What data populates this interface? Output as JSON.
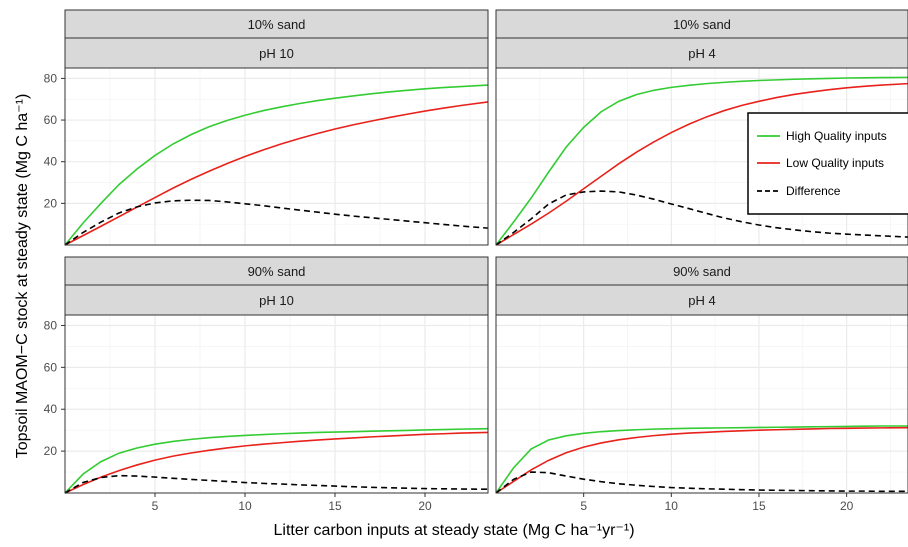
{
  "figure": {
    "xlabel": "Litter carbon inputs at steady state (Mg C ha⁻¹yr⁻¹)",
    "ylabel": "Topsoil MAOM−C stock at steady state (Mg C ha⁻¹)"
  },
  "colors": {
    "high": "#33cc33",
    "low": "#e8221b",
    "diff": "#000000",
    "strip_fill": "#d9d9d9",
    "grid_major": "#ebebeb"
  },
  "legend": {
    "placement": "inside panel top-right (10% sand, pH 4)",
    "entries": [
      "High Quality inputs",
      "Low Quality inputs",
      "Difference"
    ]
  },
  "chart_data": {
    "type": "line",
    "layout": "facet grid 2x2",
    "xlim": [
      0,
      23.5
    ],
    "ylim": [
      0,
      85
    ],
    "xticks": [
      5,
      10,
      15,
      20
    ],
    "yticks": [
      20,
      40,
      60,
      80
    ],
    "grid": true,
    "panels": [
      {
        "strip_top": "10% sand",
        "strip_bottom": "pH 10",
        "series": [
          {
            "name": "High Quality inputs",
            "x": [
              0,
              1,
              2,
              3,
              4,
              5,
              6,
              7,
              8,
              9,
              10,
              11,
              12,
              13,
              14,
              15,
              16,
              17,
              18,
              19,
              20,
              21,
              22,
              23.5
            ],
            "y": [
              0,
              10.5,
              20,
              29,
              36.5,
              43,
              48.5,
              53,
              56.8,
              59.8,
              62.3,
              64.5,
              66.3,
              67.9,
              69.3,
              70.5,
              71.6,
              72.6,
              73.5,
              74.3,
              75,
              75.6,
              76.1,
              76.8
            ]
          },
          {
            "name": "Low Quality inputs",
            "x": [
              0,
              1,
              2,
              3,
              4,
              5,
              6,
              7,
              8,
              9,
              10,
              11,
              12,
              13,
              14,
              15,
              16,
              17,
              18,
              19,
              20,
              21,
              22,
              23.5
            ],
            "y": [
              0,
              4.5,
              9,
              13.6,
              18.2,
              22.8,
              27.3,
              31.5,
              35.4,
              39.1,
              42.5,
              45.6,
              48.5,
              51.1,
              53.5,
              55.7,
              57.7,
              59.5,
              61.2,
              62.8,
              64.3,
              65.7,
              67,
              68.7
            ]
          },
          {
            "name": "Difference",
            "x": [
              0,
              1,
              2,
              3,
              4,
              5,
              6,
              7,
              8,
              9,
              10,
              11,
              12,
              13,
              14,
              15,
              16,
              17,
              18,
              19,
              20,
              21,
              22,
              23.5
            ],
            "y": [
              0,
              6,
              11,
              15.4,
              18.3,
              20.2,
              21.2,
              21.5,
              21.4,
              20.7,
              19.8,
              18.9,
              17.8,
              16.8,
              15.8,
              14.8,
              13.9,
              13.1,
              12.3,
              11.5,
              10.7,
              9.9,
              9.1,
              8.1
            ]
          }
        ]
      },
      {
        "strip_top": "10% sand",
        "strip_bottom": "pH 4",
        "series": [
          {
            "name": "High Quality inputs",
            "x": [
              0,
              1,
              2,
              3,
              4,
              5,
              6,
              7,
              8,
              9,
              10,
              11,
              12,
              13,
              14,
              15,
              16,
              17,
              18,
              19,
              20,
              21,
              22,
              23.5
            ],
            "y": [
              0,
              11,
              22.5,
              35,
              47,
              56.5,
              64,
              69,
              72.2,
              74.3,
              75.7,
              76.7,
              77.5,
              78.1,
              78.6,
              79,
              79.3,
              79.6,
              79.8,
              80,
              80.2,
              80.3,
              80.4,
              80.5
            ]
          },
          {
            "name": "Low Quality inputs",
            "x": [
              0,
              1,
              2,
              3,
              4,
              5,
              6,
              7,
              8,
              9,
              10,
              11,
              12,
              13,
              14,
              15,
              16,
              17,
              18,
              19,
              20,
              21,
              22,
              23.5
            ],
            "y": [
              0,
              5,
              10,
              15.3,
              21,
              27,
              33,
              39,
              44.5,
              49.5,
              54,
              58,
              61.5,
              64.5,
              67,
              69,
              70.8,
              72.3,
              73.5,
              74.6,
              75.5,
              76.2,
              76.8,
              77.5
            ]
          },
          {
            "name": "Difference",
            "x": [
              0,
              1,
              2,
              3,
              4,
              5,
              6,
              7,
              8,
              9,
              10,
              11,
              12,
              13,
              14,
              15,
              16,
              17,
              18,
              19,
              20,
              21,
              22,
              23.5
            ],
            "y": [
              0,
              6,
              12.5,
              19.7,
              24,
              25.5,
              25.9,
              25.5,
              24,
              22,
              19.7,
              17.5,
              15.2,
              13,
              11.2,
              9.6,
              8.3,
              7.3,
              6.4,
              5.7,
              5.2,
              4.8,
              4.4,
              3.8
            ]
          }
        ]
      },
      {
        "strip_top": "90% sand",
        "strip_bottom": "pH 10",
        "series": [
          {
            "name": "High Quality inputs",
            "x": [
              0,
              1,
              2,
              3,
              4,
              5,
              6,
              7,
              8,
              9,
              10,
              11,
              12,
              13,
              14,
              15,
              16,
              17,
              18,
              19,
              20,
              21,
              22,
              23.5
            ],
            "y": [
              0,
              9,
              15,
              19,
              21.5,
              23.3,
              24.6,
              25.6,
              26.4,
              27,
              27.5,
              27.9,
              28.3,
              28.6,
              28.9,
              29.1,
              29.3,
              29.5,
              29.7,
              29.9,
              30.1,
              30.3,
              30.5,
              30.7
            ]
          },
          {
            "name": "Low Quality inputs",
            "x": [
              0,
              1,
              2,
              3,
              4,
              5,
              6,
              7,
              8,
              9,
              10,
              11,
              12,
              13,
              14,
              15,
              16,
              17,
              18,
              19,
              20,
              21,
              22,
              23.5
            ],
            "y": [
              0,
              4,
              7.6,
              10.7,
              13.4,
              15.7,
              17.6,
              19.1,
              20.4,
              21.5,
              22.5,
              23.3,
              24,
              24.7,
              25.3,
              25.8,
              26.3,
              26.8,
              27.2,
              27.6,
              28,
              28.3,
              28.6,
              28.9
            ]
          },
          {
            "name": "Difference",
            "x": [
              0,
              1,
              2,
              3,
              4,
              5,
              6,
              7,
              8,
              9,
              10,
              11,
              12,
              13,
              14,
              15,
              16,
              17,
              18,
              19,
              20,
              21,
              22,
              23.5
            ],
            "y": [
              0,
              5,
              7.4,
              8.3,
              8.1,
              7.6,
              7,
              6.5,
              6,
              5.5,
              5,
              4.6,
              4.3,
              3.9,
              3.6,
              3.3,
              3,
              2.7,
              2.5,
              2.3,
              2.1,
              2,
              1.9,
              1.8
            ]
          }
        ]
      },
      {
        "strip_top": "90% sand",
        "strip_bottom": "pH 4",
        "series": [
          {
            "name": "High Quality inputs",
            "x": [
              0,
              1,
              2,
              3,
              4,
              5,
              6,
              7,
              8,
              9,
              10,
              11,
              12,
              13,
              14,
              15,
              16,
              17,
              18,
              19,
              20,
              21,
              22,
              23.5
            ],
            "y": [
              0,
              12,
              21,
              25.3,
              27.3,
              28.5,
              29.3,
              29.8,
              30.2,
              30.5,
              30.7,
              30.9,
              31,
              31.1,
              31.2,
              31.3,
              31.4,
              31.5,
              31.6,
              31.7,
              31.8,
              31.9,
              32,
              32
            ]
          },
          {
            "name": "Low Quality inputs",
            "x": [
              0,
              1,
              2,
              3,
              4,
              5,
              6,
              7,
              8,
              9,
              10,
              11,
              12,
              13,
              14,
              15,
              16,
              17,
              18,
              19,
              20,
              21,
              22,
              23.5
            ],
            "y": [
              0,
              5.5,
              11,
              15.6,
              19.2,
              21.9,
              23.9,
              25.4,
              26.5,
              27.4,
              28.1,
              28.6,
              29,
              29.4,
              29.7,
              30,
              30.2,
              30.4,
              30.6,
              30.8,
              30.9,
              31,
              31.1,
              31.2
            ]
          },
          {
            "name": "Difference",
            "x": [
              0,
              1,
              2,
              3,
              4,
              5,
              6,
              7,
              8,
              9,
              10,
              11,
              12,
              13,
              14,
              15,
              16,
              17,
              18,
              19,
              20,
              21,
              22,
              23.5
            ],
            "y": [
              0,
              6.5,
              10,
              9.7,
              8.1,
              6.6,
              5.4,
              4.4,
              3.7,
              3.1,
              2.6,
              2.3,
              2,
              1.8,
              1.6,
              1.4,
              1.3,
              1.2,
              1.1,
              1,
              0.9,
              0.9,
              0.8,
              0.8
            ]
          }
        ]
      }
    ]
  }
}
